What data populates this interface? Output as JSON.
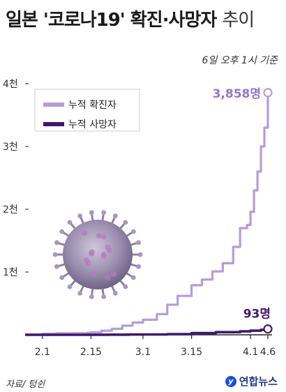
{
  "header": {
    "title_bold": "일본 '코로나19' 확진·사망자",
    "title_light": "추이",
    "subtitle": "6일 오후 1시 기준"
  },
  "footer": {
    "source": "자료/ 텅쉰",
    "brand": "연합뉴스"
  },
  "colors": {
    "confirmed": "#b39ddb",
    "deaths": "#3f1870",
    "axis": "#222222",
    "grid": "#eeeeee"
  },
  "chart_data": {
    "type": "line",
    "x_ticks": [
      "2.1",
      "2.15",
      "3.1",
      "3.15",
      "4.1",
      "4.6"
    ],
    "y_ticks": [
      "1천",
      "2천",
      "3천",
      "4천"
    ],
    "y_tick_values": [
      1000,
      2000,
      3000,
      4000
    ],
    "ylim": [
      0,
      4000
    ],
    "grid": false,
    "legend_position": "top-left",
    "annotations": {
      "confirmed_end": "3,858명",
      "deaths_end": "93명"
    },
    "series": [
      {
        "name": "누적 확진자",
        "color": "#b39ddb",
        "points": [
          [
            "2020-01-27",
            5
          ],
          [
            "2020-02-01",
            17
          ],
          [
            "2020-02-05",
            25
          ],
          [
            "2020-02-10",
            26
          ],
          [
            "2020-02-14",
            33
          ],
          [
            "2020-02-15",
            40
          ],
          [
            "2020-02-18",
            65
          ],
          [
            "2020-02-21",
            95
          ],
          [
            "2020-02-24",
            145
          ],
          [
            "2020-02-27",
            195
          ],
          [
            "2020-03-01",
            240
          ],
          [
            "2020-03-05",
            330
          ],
          [
            "2020-03-08",
            480
          ],
          [
            "2020-03-11",
            620
          ],
          [
            "2020-03-15",
            790
          ],
          [
            "2020-03-18",
            880
          ],
          [
            "2020-03-21",
            1010
          ],
          [
            "2020-03-24",
            1140
          ],
          [
            "2020-03-27",
            1400
          ],
          [
            "2020-03-29",
            1700
          ],
          [
            "2020-03-31",
            1750
          ],
          [
            "2020-04-01",
            1960
          ],
          [
            "2020-04-02",
            2300
          ],
          [
            "2020-04-03",
            2600
          ],
          [
            "2020-04-04",
            3000
          ],
          [
            "2020-04-05",
            3300
          ],
          [
            "2020-04-06",
            3858
          ]
        ]
      },
      {
        "name": "누적 사망자",
        "color": "#3f1870",
        "points": [
          [
            "2020-01-27",
            0
          ],
          [
            "2020-02-13",
            1
          ],
          [
            "2020-02-20",
            2
          ],
          [
            "2020-02-26",
            5
          ],
          [
            "2020-03-01",
            6
          ],
          [
            "2020-03-08",
            10
          ],
          [
            "2020-03-15",
            27
          ],
          [
            "2020-03-22",
            42
          ],
          [
            "2020-03-29",
            54
          ],
          [
            "2020-04-01",
            65
          ],
          [
            "2020-04-04",
            80
          ],
          [
            "2020-04-06",
            93
          ]
        ]
      }
    ]
  }
}
